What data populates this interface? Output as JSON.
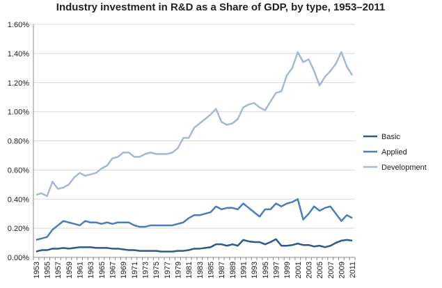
{
  "chart_data": {
    "type": "line",
    "title": "Industry investment in R&D as a Share of GDP, by type, 1953–2011",
    "categories": [
      "1953",
      null,
      "1955",
      null,
      "1957",
      null,
      "1959",
      null,
      "1961",
      null,
      "1963",
      null,
      "1965",
      null,
      "1967",
      null,
      "1969",
      null,
      "1971",
      null,
      "1973",
      null,
      "1975",
      null,
      "1977",
      null,
      "1979",
      null,
      "1981",
      null,
      "1983",
      null,
      "1985",
      null,
      "1987",
      null,
      "1989",
      null,
      "1991",
      null,
      "1993",
      null,
      "1995",
      null,
      "1997",
      null,
      "1999",
      null,
      "2001",
      null,
      "2003",
      null,
      "2005",
      null,
      "2007",
      null,
      "2009",
      null,
      "2011"
    ],
    "series": [
      {
        "name": "Basic",
        "color": "#2c5a8c",
        "values": [
          0.04,
          0.05,
          0.05,
          0.06,
          0.06,
          0.065,
          0.06,
          0.065,
          0.07,
          0.07,
          0.07,
          0.065,
          0.065,
          0.065,
          0.06,
          0.06,
          0.055,
          0.05,
          0.05,
          0.045,
          0.045,
          0.045,
          0.045,
          0.04,
          0.04,
          0.04,
          0.045,
          0.045,
          0.05,
          0.06,
          0.06,
          0.065,
          0.07,
          0.09,
          0.09,
          0.08,
          0.09,
          0.08,
          0.12,
          0.11,
          0.105,
          0.105,
          0.09,
          0.105,
          0.125,
          0.08,
          0.08,
          0.085,
          0.095,
          0.085,
          0.085,
          0.075,
          0.08,
          0.07,
          0.08,
          0.1,
          0.115,
          0.12,
          0.115
        ]
      },
      {
        "name": "Applied",
        "color": "#4a7ebb",
        "values": [
          0.12,
          0.13,
          0.14,
          0.19,
          0.22,
          0.25,
          0.24,
          0.23,
          0.22,
          0.25,
          0.24,
          0.24,
          0.23,
          0.24,
          0.23,
          0.24,
          0.24,
          0.24,
          0.22,
          0.21,
          0.21,
          0.22,
          0.22,
          0.22,
          0.22,
          0.22,
          0.23,
          0.24,
          0.27,
          0.29,
          0.29,
          0.3,
          0.31,
          0.35,
          0.33,
          0.34,
          0.34,
          0.33,
          0.37,
          0.34,
          0.31,
          0.28,
          0.33,
          0.33,
          0.37,
          0.35,
          0.37,
          0.38,
          0.4,
          0.26,
          0.3,
          0.35,
          0.32,
          0.34,
          0.35,
          0.3,
          0.25,
          0.29,
          0.27
        ]
      },
      {
        "name": "Development",
        "color": "#a5b8d8",
        "values": [
          0.43,
          0.44,
          0.42,
          0.52,
          0.47,
          0.48,
          0.5,
          0.55,
          0.58,
          0.56,
          0.57,
          0.58,
          0.61,
          0.63,
          0.68,
          0.69,
          0.72,
          0.72,
          0.69,
          0.69,
          0.71,
          0.72,
          0.71,
          0.71,
          0.71,
          0.72,
          0.75,
          0.82,
          0.82,
          0.89,
          0.92,
          0.95,
          0.98,
          1.02,
          0.93,
          0.91,
          0.92,
          0.95,
          1.03,
          1.05,
          1.06,
          1.03,
          1.01,
          1.07,
          1.13,
          1.14,
          1.25,
          1.3,
          1.41,
          1.34,
          1.36,
          1.28,
          1.18,
          1.24,
          1.28,
          1.33,
          1.41,
          1.31,
          1.25
        ]
      }
    ],
    "ylim": [
      0,
      1.6
    ],
    "yticks": [
      {
        "value": 0,
        "label": "0.00%"
      },
      {
        "value": 0.2,
        "label": "0.20%"
      },
      {
        "value": 0.4,
        "label": "0.40%"
      },
      {
        "value": 0.6,
        "label": "0.60%"
      },
      {
        "value": 0.8,
        "label": "0.80%"
      },
      {
        "value": 1.0,
        "label": "1.00%"
      },
      {
        "value": 1.2,
        "label": "1.20%"
      },
      {
        "value": 1.4,
        "label": "1.40%"
      },
      {
        "value": 1.6,
        "label": "1.60%"
      }
    ],
    "grid": true,
    "legend": "right"
  }
}
